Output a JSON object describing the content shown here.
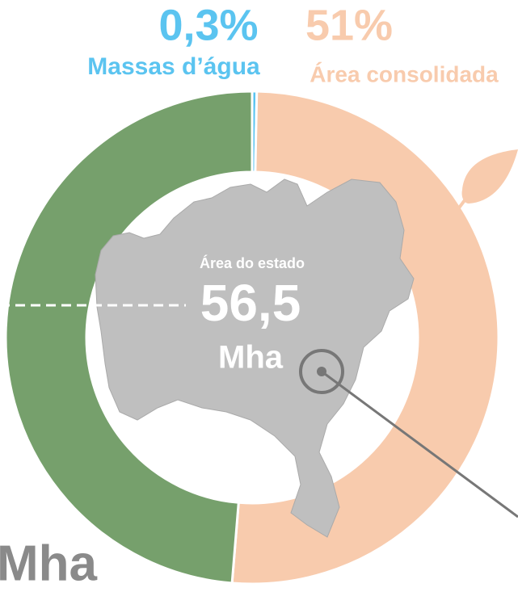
{
  "chart_data": {
    "type": "donut",
    "categories": [
      "Massas d’água",
      "Área consolidada",
      null
    ],
    "values": [
      0.3,
      51,
      48.7
    ],
    "value_labels": [
      "0,3%",
      "51%",
      null
    ],
    "colors": [
      "#5bc4f0",
      "#f8cbad",
      "#76a06c"
    ],
    "center_label": "Área do estado",
    "center_value": "56,5",
    "center_unit": "Mha",
    "annotation": "Mha"
  }
}
